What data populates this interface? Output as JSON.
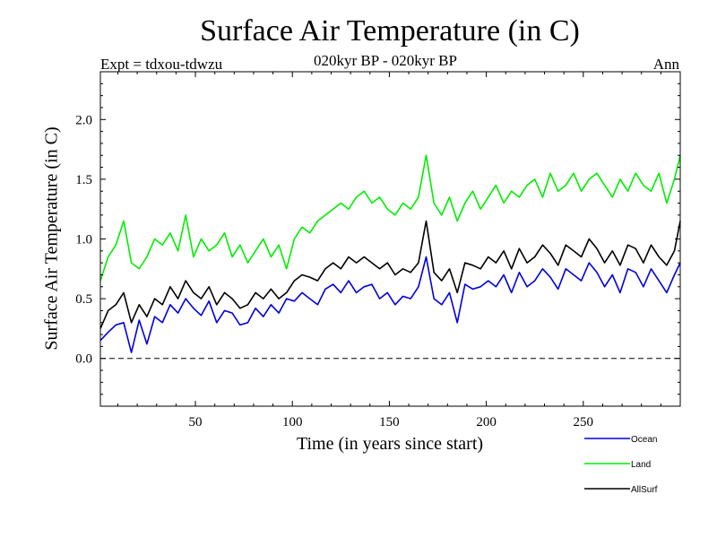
{
  "chart_data": {
    "type": "line",
    "title": "Surface Air Temperature (in C)",
    "subtitle_left": "Expt = tdxou-tdwzu",
    "subtitle_center": "020kyr BP - 020kyr BP",
    "subtitle_right": "Ann",
    "xlabel": "Time (in years since start)",
    "ylabel": "Surface Air Temperature (in C)",
    "xlim": [
      1,
      300
    ],
    "ylim": [
      -0.4,
      2.4
    ],
    "xticks": [
      50,
      100,
      150,
      200,
      250
    ],
    "yticks": [
      0.0,
      0.5,
      1.0,
      1.5,
      2.0
    ],
    "ytick_labels": [
      "0.0",
      "0.5",
      "1.0",
      "1.5",
      "2.0"
    ],
    "reference_line": 0.0,
    "legend_position": "bottom-right, below plot",
    "series": [
      {
        "name": "Ocean",
        "color": "#0000dd",
        "x": [
          1,
          5,
          9,
          13,
          17,
          21,
          25,
          29,
          33,
          37,
          41,
          45,
          49,
          53,
          57,
          61,
          65,
          69,
          73,
          77,
          81,
          85,
          89,
          93,
          97,
          101,
          105,
          109,
          113,
          117,
          121,
          125,
          129,
          133,
          137,
          141,
          145,
          149,
          153,
          157,
          161,
          165,
          169,
          173,
          177,
          181,
          185,
          189,
          193,
          197,
          201,
          205,
          209,
          213,
          217,
          221,
          225,
          229,
          233,
          237,
          241,
          245,
          249,
          253,
          257,
          261,
          265,
          269,
          273,
          277,
          281,
          285,
          289,
          293,
          297,
          300
        ],
        "values": [
          0.15,
          0.22,
          0.28,
          0.3,
          0.05,
          0.32,
          0.12,
          0.35,
          0.3,
          0.45,
          0.38,
          0.5,
          0.42,
          0.36,
          0.48,
          0.3,
          0.4,
          0.38,
          0.28,
          0.3,
          0.42,
          0.35,
          0.45,
          0.38,
          0.5,
          0.48,
          0.55,
          0.5,
          0.45,
          0.58,
          0.62,
          0.55,
          0.65,
          0.55,
          0.6,
          0.62,
          0.5,
          0.55,
          0.45,
          0.52,
          0.5,
          0.6,
          0.85,
          0.5,
          0.45,
          0.55,
          0.3,
          0.62,
          0.58,
          0.6,
          0.65,
          0.6,
          0.7,
          0.55,
          0.72,
          0.6,
          0.65,
          0.75,
          0.68,
          0.58,
          0.75,
          0.7,
          0.65,
          0.8,
          0.72,
          0.6,
          0.7,
          0.55,
          0.75,
          0.72,
          0.6,
          0.75,
          0.65,
          0.55,
          0.7,
          0.8
        ]
      },
      {
        "name": "Land",
        "color": "#00ee00",
        "x": [
          1,
          5,
          9,
          13,
          17,
          21,
          25,
          29,
          33,
          37,
          41,
          45,
          49,
          53,
          57,
          61,
          65,
          69,
          73,
          77,
          81,
          85,
          89,
          93,
          97,
          101,
          105,
          109,
          113,
          117,
          121,
          125,
          129,
          133,
          137,
          141,
          145,
          149,
          153,
          157,
          161,
          165,
          169,
          173,
          177,
          181,
          185,
          189,
          193,
          197,
          201,
          205,
          209,
          213,
          217,
          221,
          225,
          229,
          233,
          237,
          241,
          245,
          249,
          253,
          257,
          261,
          265,
          269,
          273,
          277,
          281,
          285,
          289,
          293,
          297,
          300
        ],
        "values": [
          0.65,
          0.85,
          0.95,
          1.15,
          0.8,
          0.75,
          0.85,
          1.0,
          0.95,
          1.05,
          0.9,
          1.2,
          0.85,
          1.0,
          0.9,
          0.95,
          1.05,
          0.85,
          0.95,
          0.8,
          0.9,
          1.0,
          0.85,
          0.95,
          0.75,
          1.0,
          1.1,
          1.05,
          1.15,
          1.2,
          1.25,
          1.3,
          1.25,
          1.35,
          1.4,
          1.3,
          1.35,
          1.25,
          1.2,
          1.3,
          1.25,
          1.35,
          1.7,
          1.3,
          1.2,
          1.35,
          1.15,
          1.3,
          1.4,
          1.25,
          1.35,
          1.45,
          1.3,
          1.4,
          1.35,
          1.45,
          1.5,
          1.35,
          1.55,
          1.4,
          1.45,
          1.55,
          1.4,
          1.5,
          1.55,
          1.45,
          1.35,
          1.5,
          1.4,
          1.55,
          1.45,
          1.4,
          1.55,
          1.3,
          1.5,
          1.7
        ]
      },
      {
        "name": "AllSurf",
        "color": "#000000",
        "x": [
          1,
          5,
          9,
          13,
          17,
          21,
          25,
          29,
          33,
          37,
          41,
          45,
          49,
          53,
          57,
          61,
          65,
          69,
          73,
          77,
          81,
          85,
          89,
          93,
          97,
          101,
          105,
          109,
          113,
          117,
          121,
          125,
          129,
          133,
          137,
          141,
          145,
          149,
          153,
          157,
          161,
          165,
          169,
          173,
          177,
          181,
          185,
          189,
          193,
          197,
          201,
          205,
          209,
          213,
          217,
          221,
          225,
          229,
          233,
          237,
          241,
          245,
          249,
          253,
          257,
          261,
          265,
          269,
          273,
          277,
          281,
          285,
          289,
          293,
          297,
          300
        ],
        "values": [
          0.25,
          0.4,
          0.45,
          0.55,
          0.3,
          0.45,
          0.35,
          0.5,
          0.45,
          0.6,
          0.5,
          0.65,
          0.55,
          0.5,
          0.6,
          0.45,
          0.55,
          0.5,
          0.42,
          0.45,
          0.55,
          0.5,
          0.58,
          0.5,
          0.55,
          0.65,
          0.7,
          0.68,
          0.65,
          0.75,
          0.8,
          0.75,
          0.85,
          0.8,
          0.85,
          0.8,
          0.75,
          0.8,
          0.7,
          0.75,
          0.72,
          0.8,
          1.15,
          0.72,
          0.65,
          0.75,
          0.55,
          0.8,
          0.78,
          0.75,
          0.85,
          0.8,
          0.9,
          0.75,
          0.92,
          0.8,
          0.85,
          0.95,
          0.88,
          0.78,
          0.95,
          0.9,
          0.85,
          1.0,
          0.92,
          0.8,
          0.9,
          0.78,
          0.95,
          0.92,
          0.8,
          0.95,
          0.85,
          0.78,
          0.9,
          1.15
        ]
      }
    ]
  }
}
